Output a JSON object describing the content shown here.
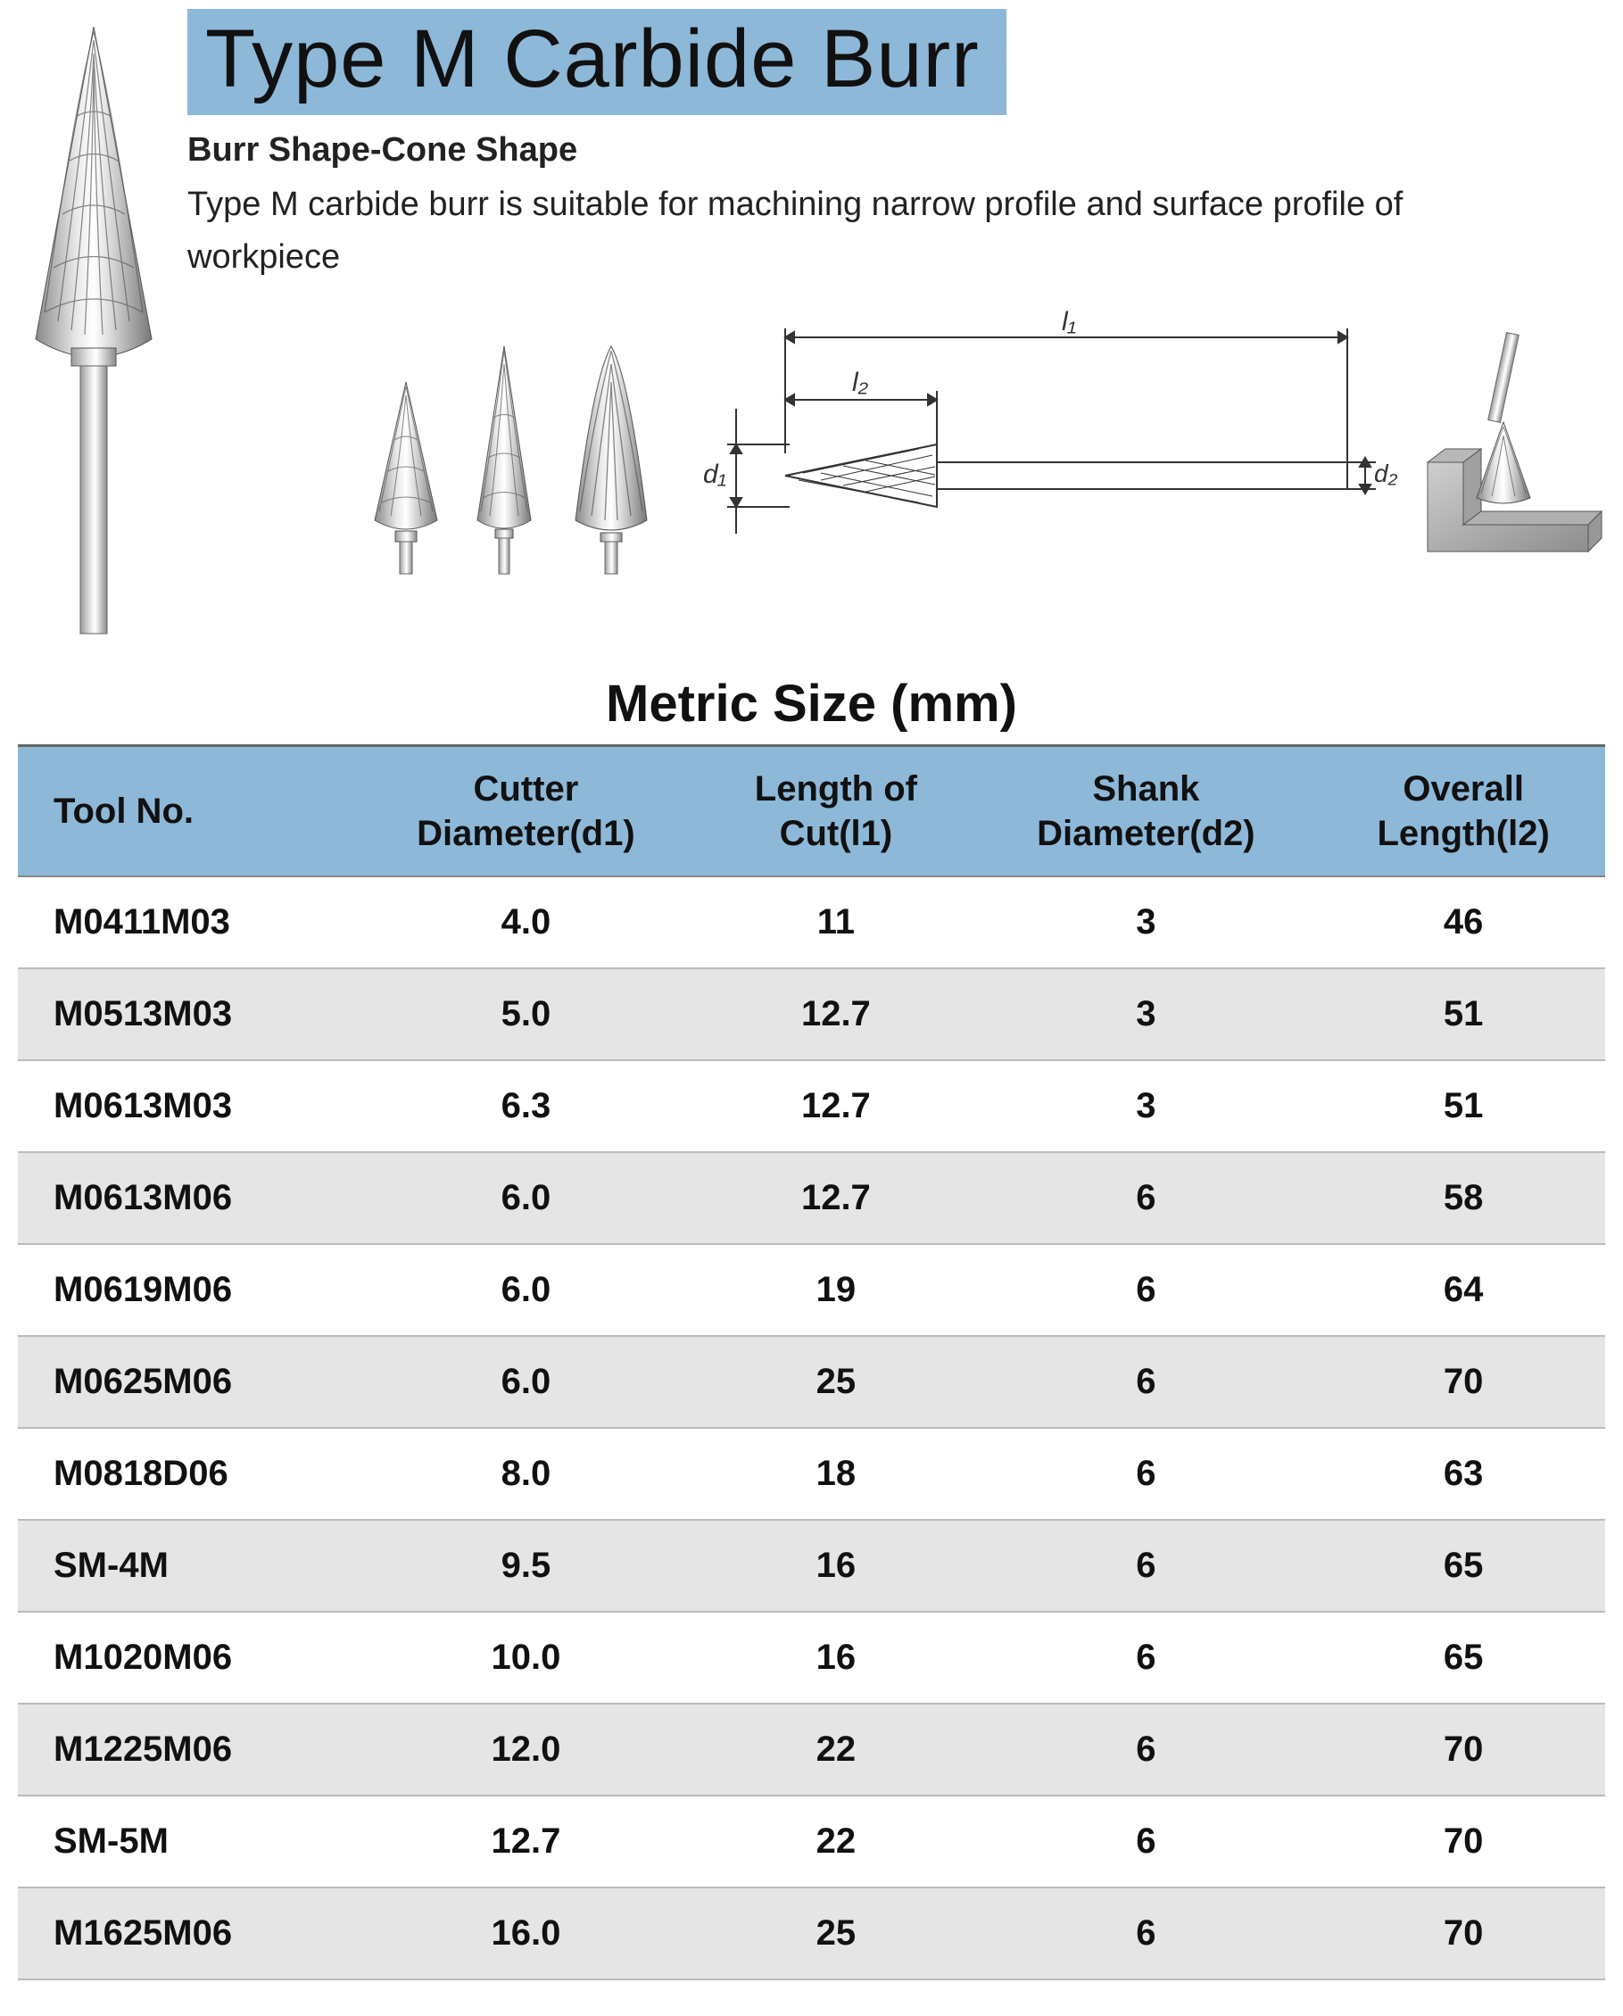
{
  "header": {
    "title": "Type M Carbide Burr",
    "subtitle": "Burr Shape-Cone Shape",
    "description": "Type M carbide burr is suitable for machining narrow profile and surface profile of workpiece",
    "title_bg": "#8db8d8",
    "title_color": "#111111",
    "title_fontsize": 92,
    "subtitle_fontsize": 38,
    "description_fontsize": 38
  },
  "diagram_labels": {
    "d1": "d₁",
    "d2": "d₂",
    "l1": "l₁",
    "l2": "l₂"
  },
  "table": {
    "title": "Metric Size (mm)",
    "title_fontsize": 58,
    "header_bg": "#8db8d8",
    "row_alt_bg": "#e5e5e5",
    "border_color": "#bbbbbb",
    "font_weight": 700,
    "cell_fontsize": 40,
    "columns": [
      "Tool No.",
      "Cutter Diameter(d1)",
      "Length of Cut(l1)",
      "Shank Diameter(d2)",
      "Overall Length(l2)"
    ],
    "column_headers_split": [
      [
        "Tool No."
      ],
      [
        "Cutter",
        "Diameter(d1)"
      ],
      [
        "Length of",
        "Cut(l1)"
      ],
      [
        "Shank",
        "Diameter(d2)"
      ],
      [
        "Overall",
        "Length(l2)"
      ]
    ],
    "rows": [
      [
        "M0411M03",
        "4.0",
        "11",
        "3",
        "46"
      ],
      [
        "M0513M03",
        "5.0",
        "12.7",
        "3",
        "51"
      ],
      [
        "M0613M03",
        "6.3",
        "12.7",
        "3",
        "51"
      ],
      [
        "M0613M06",
        "6.0",
        "12.7",
        "6",
        "58"
      ],
      [
        "M0619M06",
        "6.0",
        "19",
        "6",
        "64"
      ],
      [
        "M0625M06",
        "6.0",
        "25",
        "6",
        "70"
      ],
      [
        "M0818D06",
        "8.0",
        "18",
        "6",
        "63"
      ],
      [
        "SM-4M",
        "9.5",
        "16",
        "6",
        "65"
      ],
      [
        "M1020M06",
        "10.0",
        "16",
        "6",
        "65"
      ],
      [
        "M1225M06",
        "12.0",
        "22",
        "6",
        "70"
      ],
      [
        "SM-5M",
        "12.7",
        "22",
        "6",
        "70"
      ],
      [
        "M1625M06",
        "16.0",
        "25",
        "6",
        "70"
      ]
    ]
  },
  "colors": {
    "accent": "#8db8d8",
    "text": "#111111",
    "alt_row": "#e5e5e5",
    "background": "#ffffff"
  }
}
